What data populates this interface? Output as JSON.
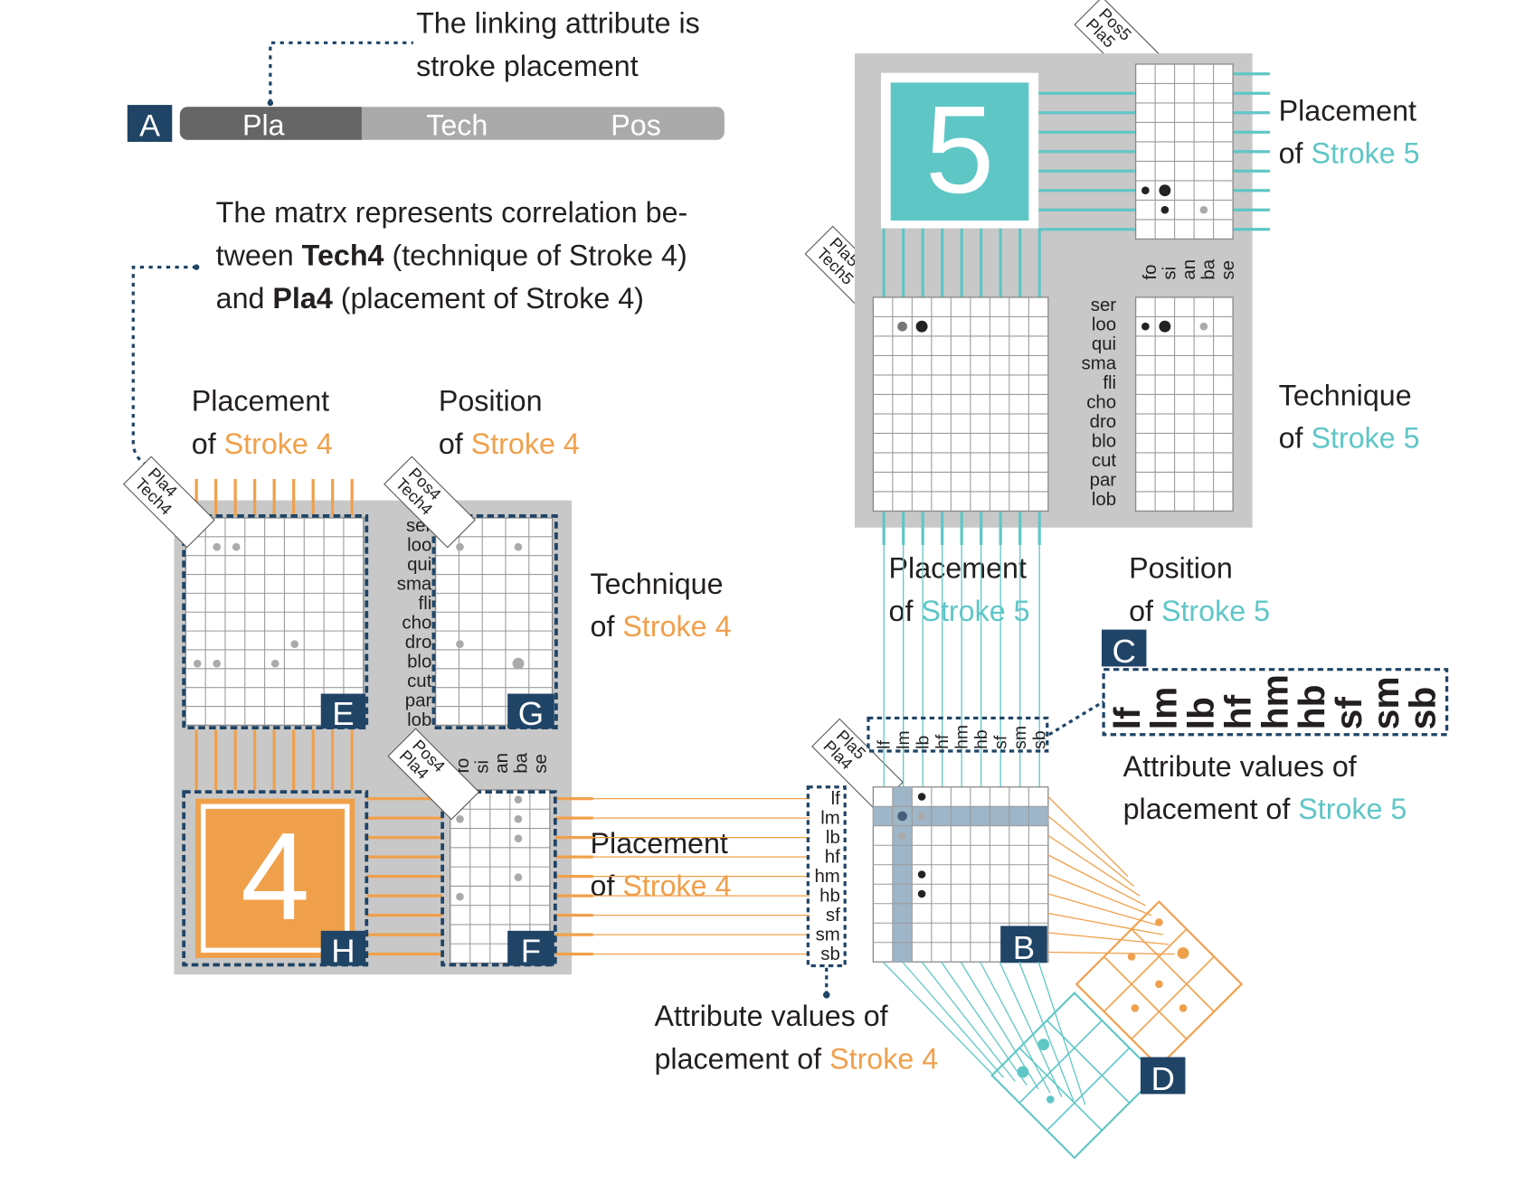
{
  "attr_bar": {
    "badge": "A",
    "segments": [
      "Pla",
      "Tech",
      "Pos"
    ],
    "caption": [
      "The linking attribute is",
      "stroke placement"
    ]
  },
  "matrix_caption": {
    "line1": "The matrx represents correlation be-",
    "line2_pre": "tween ",
    "line2_b": "Tech4",
    "line2_post": " (technique of Stroke 4)",
    "line3_pre": "and ",
    "line3_b": "Pla4",
    "line3_post": " (placement of Stroke 4)"
  },
  "labels": {
    "of": "of",
    "stroke4": "Stroke 4",
    "stroke5": "Stroke 5",
    "placement": "Placement",
    "position": "Position",
    "technique": "Technique",
    "attr_values_of": "Attribute values of",
    "placement_of": "placement of "
  },
  "badges": {
    "B": "B",
    "C": "C",
    "D": "D",
    "E": "E",
    "F": "F",
    "G": "G",
    "H": "H"
  },
  "stroke_numbers": {
    "four": "4",
    "five": "5"
  },
  "corner_tags": {
    "pla4_tech4": [
      "Pla4",
      "Tech4"
    ],
    "pos4_tech4": [
      "Pos4",
      "Tech4"
    ],
    "pos4_pla4": [
      "Pos4",
      "Pla4"
    ],
    "pos5_pla5": [
      "Pos5",
      "Pla5"
    ],
    "pla5_tech5": [
      "Pla5",
      "Tech5"
    ],
    "pos5_tech5": [
      "Pos5",
      "Tech5"
    ],
    "pla5_pla4": [
      "Pla5",
      "Pla4"
    ]
  },
  "technique_values": [
    "ser",
    "loo",
    "qui",
    "sma",
    "fli",
    "cho",
    "dro",
    "blo",
    "cut",
    "par",
    "lob"
  ],
  "position_values": [
    "fo",
    "si",
    "an",
    "ba",
    "se"
  ],
  "placement_values": [
    "lf",
    "lm",
    "lb",
    "hf",
    "hm",
    "hb",
    "sf",
    "sm",
    "sb"
  ],
  "colors": {
    "orange": "#f0a04b",
    "teal": "#5fc6c6",
    "navy": "#1f4466",
    "gray": "#c8c8c8"
  }
}
